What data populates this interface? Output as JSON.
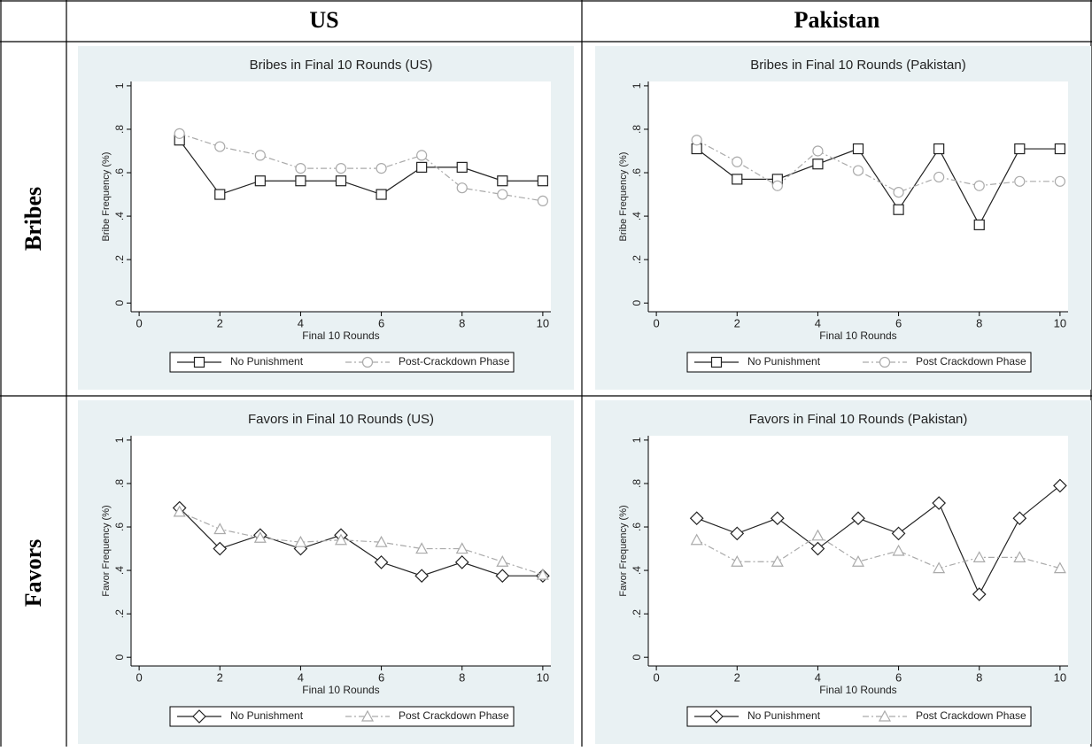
{
  "table": {
    "columns": [
      "US",
      "Pakistan"
    ],
    "rows": [
      "Bribes",
      "Favors"
    ]
  },
  "chart_data": [
    {
      "type": "line",
      "title": "Bribes in Final 10 Rounds (US)",
      "x_label": "Final 10 Rounds",
      "y_label": "Bribe Frequency (%)",
      "x": [
        1,
        2,
        3,
        4,
        5,
        6,
        7,
        8,
        9,
        10
      ],
      "xlim": [
        -0.2,
        10.2
      ],
      "xticks": [
        0,
        2,
        4,
        6,
        8,
        10
      ],
      "ylim": [
        -0.04,
        1.02
      ],
      "yticks": [
        0,
        {
          "value": 0.2,
          "label": ".2"
        },
        {
          "value": 0.4,
          "label": ".4"
        },
        {
          "value": 0.6,
          "label": ".6"
        },
        {
          "value": 0.8,
          "label": ".8"
        },
        1
      ],
      "series": [
        {
          "name": "No Punishment",
          "color": "#222222",
          "marker": "square",
          "dashed": false,
          "values": [
            0.75,
            0.5,
            0.5625,
            0.5625,
            0.5625,
            0.5,
            0.625,
            0.625,
            0.5625,
            0.5625
          ]
        },
        {
          "name": "Post-Crackdown Phase",
          "color": "#aaaaaa",
          "marker": "circle",
          "dashed": true,
          "values": [
            0.78,
            0.72,
            0.68,
            0.62,
            0.62,
            0.62,
            0.68,
            0.53,
            0.5,
            0.47
          ]
        }
      ]
    },
    {
      "type": "line",
      "title": "Bribes in Final 10 Rounds (Pakistan)",
      "x_label": "Final 10 Rounds",
      "y_label": "Bribe Frequency (%)",
      "x": [
        1,
        2,
        3,
        4,
        5,
        6,
        7,
        8,
        9,
        10
      ],
      "xlim": [
        -0.2,
        10.2
      ],
      "xticks": [
        0,
        2,
        4,
        6,
        8,
        10
      ],
      "ylim": [
        -0.04,
        1.02
      ],
      "yticks": [
        0,
        {
          "value": 0.2,
          "label": ".2"
        },
        {
          "value": 0.4,
          "label": ".4"
        },
        {
          "value": 0.6,
          "label": ".6"
        },
        {
          "value": 0.8,
          "label": ".8"
        },
        1
      ],
      "series": [
        {
          "name": "No Punishment",
          "color": "#222222",
          "marker": "square",
          "dashed": false,
          "values": [
            0.71,
            0.57,
            0.57,
            0.64,
            0.71,
            0.43,
            0.71,
            0.36,
            0.71,
            0.71
          ]
        },
        {
          "name": "Post Crackdown Phase",
          "color": "#aaaaaa",
          "marker": "circle",
          "dashed": true,
          "values": [
            0.75,
            0.65,
            0.54,
            0.7,
            0.61,
            0.51,
            0.58,
            0.54,
            0.56,
            0.56
          ]
        }
      ]
    },
    {
      "type": "line",
      "title": "Favors in Final 10 Rounds (US)",
      "x_label": "Final 10 Rounds",
      "y_label": "Favor Frequency (%)",
      "x": [
        1,
        2,
        3,
        4,
        5,
        6,
        7,
        8,
        9,
        10
      ],
      "xlim": [
        -0.2,
        10.2
      ],
      "xticks": [
        0,
        2,
        4,
        6,
        8,
        10
      ],
      "ylim": [
        -0.04,
        1.02
      ],
      "yticks": [
        0,
        {
          "value": 0.2,
          "label": ".2"
        },
        {
          "value": 0.4,
          "label": ".4"
        },
        {
          "value": 0.6,
          "label": ".6"
        },
        {
          "value": 0.8,
          "label": ".8"
        },
        1
      ],
      "series": [
        {
          "name": "No Punishment",
          "color": "#222222",
          "marker": "diamond",
          "dashed": false,
          "values": [
            0.6875,
            0.5,
            0.5625,
            0.5,
            0.5625,
            0.4375,
            0.375,
            0.4375,
            0.375,
            0.375
          ]
        },
        {
          "name": "Post Crackdown Phase",
          "color": "#aaaaaa",
          "marker": "triangle",
          "dashed": true,
          "values": [
            0.67,
            0.59,
            0.55,
            0.53,
            0.54,
            0.53,
            0.5,
            0.5,
            0.44,
            0.38
          ]
        }
      ]
    },
    {
      "type": "line",
      "title": "Favors in Final 10 Rounds (Pakistan)",
      "x_label": "Final 10 Rounds",
      "y_label": "Favor Frequency (%)",
      "x": [
        1,
        2,
        3,
        4,
        5,
        6,
        7,
        8,
        9,
        10
      ],
      "xlim": [
        -0.2,
        10.2
      ],
      "xticks": [
        0,
        2,
        4,
        6,
        8,
        10
      ],
      "ylim": [
        -0.04,
        1.02
      ],
      "yticks": [
        0,
        {
          "value": 0.2,
          "label": ".2"
        },
        {
          "value": 0.4,
          "label": ".4"
        },
        {
          "value": 0.6,
          "label": ".6"
        },
        {
          "value": 0.8,
          "label": ".8"
        },
        1
      ],
      "series": [
        {
          "name": "No Punishment",
          "color": "#222222",
          "marker": "diamond",
          "dashed": false,
          "values": [
            0.64,
            0.57,
            0.64,
            0.5,
            0.64,
            0.57,
            0.71,
            0.29,
            0.64,
            0.79
          ]
        },
        {
          "name": "Post Crackdown Phase",
          "color": "#aaaaaa",
          "marker": "triangle",
          "dashed": true,
          "values": [
            0.54,
            0.44,
            0.44,
            0.56,
            0.44,
            0.49,
            0.41,
            0.46,
            0.46,
            0.41
          ]
        }
      ]
    }
  ]
}
